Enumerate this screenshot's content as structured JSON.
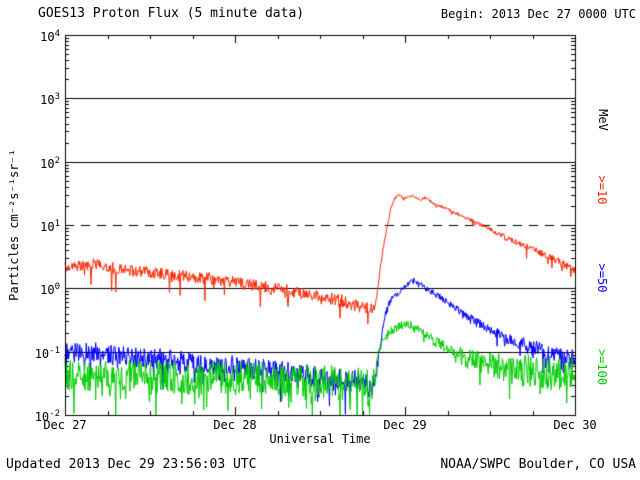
{
  "header": {
    "title": "GOES13 Proton Flux (5 minute data)",
    "begin_label": "Begin: 2013 Dec 27 0000 UTC"
  },
  "footer": {
    "updated": "Updated 2013 Dec 29 23:56:03 UTC",
    "source": "NOAA/SWPC Boulder, CO USA"
  },
  "axes": {
    "x_title": "Universal Time",
    "y_title": "Particles cm⁻²s⁻¹sr⁻¹",
    "right_axis_title": "MeV",
    "x_tick_labels": [
      "Dec 27",
      "Dec 28",
      "Dec 29",
      "Dec 30"
    ],
    "y_tick_exponents": [
      4,
      3,
      2,
      1,
      0,
      -1,
      -2
    ]
  },
  "legend": [
    {
      "label": ">=10",
      "color": "#fb2500"
    },
    {
      "label": ">=50",
      "color": "#0000fb"
    },
    {
      "label": ">=100",
      "color": "#00cc00"
    }
  ],
  "chart_data": {
    "type": "line",
    "title": "GOES13 Proton Flux (5 minute data)",
    "xlabel": "Universal Time",
    "ylabel": "Particles cm⁻²s⁻¹sr⁻¹",
    "x_unit": "hours since 2013 Dec 27 0000 UTC",
    "x_range": [
      0,
      72
    ],
    "y_scale": "log",
    "ylim": [
      0.01,
      10000
    ],
    "x_tick_hours": [
      0,
      24,
      48,
      72
    ],
    "x_tick_labels": [
      "Dec 27",
      "Dec 28",
      "Dec 29",
      "Dec 30"
    ],
    "solid_hlines": [
      1000,
      100,
      1,
      0.1
    ],
    "dashed_hlines": [
      10
    ],
    "sample_minutes": 5,
    "series": [
      {
        "name": ">=10 MeV",
        "color": "#fb2500",
        "spike_prob": 0.05,
        "spike_depth": 0.3,
        "keypoints": [
          [
            0,
            2.2
          ],
          [
            4,
            2.4
          ],
          [
            8,
            2.0
          ],
          [
            12,
            1.8
          ],
          [
            16,
            1.6
          ],
          [
            20,
            1.45
          ],
          [
            24,
            1.25
          ],
          [
            28,
            1.05
          ],
          [
            32,
            0.9
          ],
          [
            36,
            0.75
          ],
          [
            40,
            0.6
          ],
          [
            42,
            0.52
          ],
          [
            43.5,
            0.45
          ],
          [
            44,
            0.7
          ],
          [
            44.5,
            2.0
          ],
          [
            45,
            5.0
          ],
          [
            45.5,
            10
          ],
          [
            46,
            18
          ],
          [
            46.5,
            25
          ],
          [
            47,
            30
          ],
          [
            47.5,
            28
          ],
          [
            48,
            26
          ],
          [
            49,
            29
          ],
          [
            50,
            25
          ],
          [
            51,
            27
          ],
          [
            52,
            22
          ],
          [
            53,
            20
          ],
          [
            54,
            18
          ],
          [
            56,
            14
          ],
          [
            58,
            11
          ],
          [
            60,
            8.5
          ],
          [
            62,
            6.5
          ],
          [
            64,
            5.2
          ],
          [
            66,
            4.2
          ],
          [
            68,
            3.3
          ],
          [
            70,
            2.6
          ],
          [
            72,
            1.9
          ]
        ],
        "noise": [
          [
            0,
            0.09
          ],
          [
            36,
            0.1
          ],
          [
            43,
            0.11
          ],
          [
            44.5,
            0.03
          ],
          [
            48,
            0.02
          ],
          [
            54,
            0.025
          ],
          [
            60,
            0.035
          ],
          [
            66,
            0.05
          ],
          [
            72,
            0.07
          ]
        ]
      },
      {
        "name": ">=50 MeV",
        "color": "#0000fb",
        "spike_prob": 0.08,
        "spike_depth": 0.35,
        "keypoints": [
          [
            0,
            0.095
          ],
          [
            4,
            0.1
          ],
          [
            8,
            0.085
          ],
          [
            12,
            0.08
          ],
          [
            16,
            0.072
          ],
          [
            20,
            0.065
          ],
          [
            24,
            0.06
          ],
          [
            28,
            0.052
          ],
          [
            32,
            0.046
          ],
          [
            36,
            0.04
          ],
          [
            40,
            0.035
          ],
          [
            43.5,
            0.032
          ],
          [
            44,
            0.05
          ],
          [
            44.5,
            0.13
          ],
          [
            45,
            0.3
          ],
          [
            45.5,
            0.5
          ],
          [
            46,
            0.65
          ],
          [
            47,
            0.85
          ],
          [
            48,
            1.05
          ],
          [
            49,
            1.3
          ],
          [
            49.5,
            1.35
          ],
          [
            50,
            1.2
          ],
          [
            51,
            1.0
          ],
          [
            52,
            0.85
          ],
          [
            53,
            0.72
          ],
          [
            54,
            0.6
          ],
          [
            56,
            0.42
          ],
          [
            58,
            0.3
          ],
          [
            60,
            0.22
          ],
          [
            62,
            0.17
          ],
          [
            64,
            0.14
          ],
          [
            66,
            0.12
          ],
          [
            68,
            0.1
          ],
          [
            70,
            0.09
          ],
          [
            72,
            0.08
          ]
        ],
        "noise": [
          [
            0,
            0.16
          ],
          [
            36,
            0.17
          ],
          [
            43,
            0.18
          ],
          [
            44.5,
            0.05
          ],
          [
            50,
            0.04
          ],
          [
            56,
            0.06
          ],
          [
            62,
            0.09
          ],
          [
            68,
            0.12
          ],
          [
            72,
            0.14
          ]
        ]
      },
      {
        "name": ">=100 MeV",
        "color": "#00cc00",
        "spike_prob": 0.15,
        "spike_depth": 0.5,
        "keypoints": [
          [
            0,
            0.045
          ],
          [
            6,
            0.042
          ],
          [
            12,
            0.042
          ],
          [
            18,
            0.038
          ],
          [
            24,
            0.04
          ],
          [
            30,
            0.036
          ],
          [
            36,
            0.034
          ],
          [
            40,
            0.031
          ],
          [
            43.5,
            0.03
          ],
          [
            44,
            0.06
          ],
          [
            44.5,
            0.12
          ],
          [
            45,
            0.17
          ],
          [
            46,
            0.21
          ],
          [
            47,
            0.25
          ],
          [
            48,
            0.28
          ],
          [
            49,
            0.26
          ],
          [
            50,
            0.22
          ],
          [
            51,
            0.18
          ],
          [
            52,
            0.15
          ],
          [
            54,
            0.11
          ],
          [
            56,
            0.09
          ],
          [
            58,
            0.075
          ],
          [
            60,
            0.065
          ],
          [
            62,
            0.055
          ],
          [
            64,
            0.05
          ],
          [
            66,
            0.048
          ],
          [
            68,
            0.046
          ],
          [
            70,
            0.045
          ],
          [
            72,
            0.042
          ]
        ],
        "noise": [
          [
            0,
            0.26
          ],
          [
            36,
            0.27
          ],
          [
            43.5,
            0.27
          ],
          [
            44.5,
            0.07
          ],
          [
            50,
            0.07
          ],
          [
            54,
            0.1
          ],
          [
            58,
            0.14
          ],
          [
            62,
            0.22
          ],
          [
            66,
            0.27
          ],
          [
            72,
            0.28
          ]
        ]
      }
    ]
  }
}
